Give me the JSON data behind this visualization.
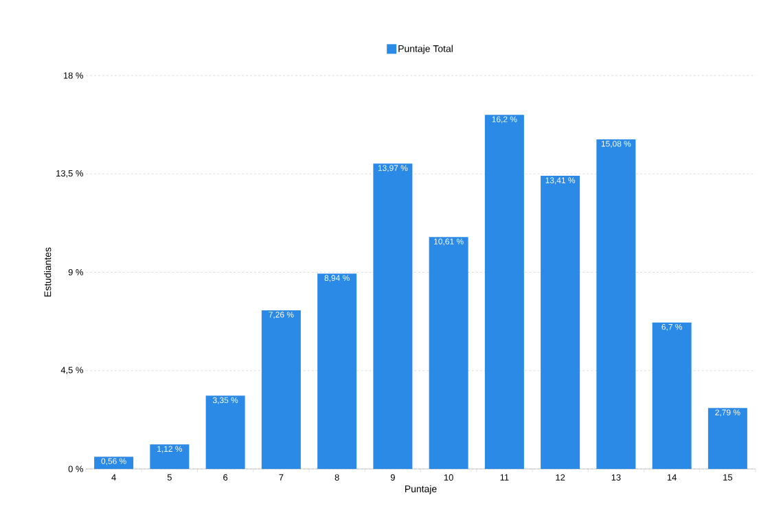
{
  "chart_data": {
    "type": "bar",
    "xlabel": "Puntaje",
    "ylabel": "Estudiantes",
    "categories": [
      "4",
      "5",
      "6",
      "7",
      "8",
      "9",
      "10",
      "11",
      "12",
      "13",
      "14",
      "15"
    ],
    "series": [
      {
        "name": "Puntaje Total",
        "color": "#2b8ae6",
        "values": [
          0.56,
          1.12,
          3.35,
          7.26,
          8.94,
          13.97,
          10.61,
          16.2,
          13.41,
          15.08,
          6.7,
          2.79
        ],
        "value_labels": [
          "0,56 %",
          "1,12 %",
          "3,35 %",
          "7,26 %",
          "8,94 %",
          "13,97 %",
          "10,61 %",
          "16,2 %",
          "13,41 %",
          "15,08 %",
          "6,7 %",
          "2,79 %"
        ]
      }
    ],
    "ylim": [
      0,
      18
    ],
    "yticks": [
      {
        "value": 0,
        "label": "0 %"
      },
      {
        "value": 4.5,
        "label": "4,5 %"
      },
      {
        "value": 9,
        "label": "9 %"
      },
      {
        "value": 13.5,
        "label": "13,5 %"
      },
      {
        "value": 18,
        "label": "18 %"
      }
    ],
    "grid": "y",
    "legend": "top"
  }
}
